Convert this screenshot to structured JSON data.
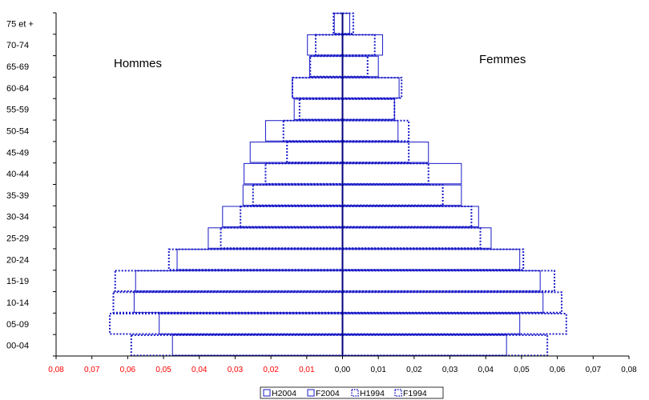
{
  "chart_data": {
    "type": "bar",
    "orientation": "horizontal-pyramid",
    "categories": [
      "00-04",
      "05-09",
      "10-14",
      "15-19",
      "20-24",
      "25-29",
      "30-34",
      "35-39",
      "40-44",
      "45-49",
      "50-54",
      "55-59",
      "60-64",
      "65-69",
      "70-74",
      "75 et +"
    ],
    "x_ticks": [
      "0,08",
      "0,07",
      "0,06",
      "0,05",
      "0,04",
      "0,03",
      "0,02",
      "0,01",
      "0,00",
      "0,01",
      "0,02",
      "0,03",
      "0,04",
      "0,05",
      "0,06",
      "0,07",
      "0,08"
    ],
    "xlim": [
      -0.08,
      0.08
    ],
    "grid": false,
    "legend_position": "bottom",
    "side_labels": {
      "left": "Hommes",
      "right": "Femmes"
    },
    "series": [
      {
        "name": "H2004",
        "side": "left",
        "style": "solid",
        "values": [
          0.0475,
          0.0512,
          0.0582,
          0.0578,
          0.0462,
          0.0375,
          0.0335,
          0.0278,
          0.0275,
          0.0258,
          0.0215,
          0.0135,
          0.014,
          0.0092,
          0.0098,
          0.0023
        ]
      },
      {
        "name": "F2004",
        "side": "right",
        "style": "solid",
        "values": [
          0.0458,
          0.0495,
          0.056,
          0.0552,
          0.0495,
          0.0415,
          0.038,
          0.0332,
          0.0332,
          0.024,
          0.0155,
          0.0145,
          0.0158,
          0.01,
          0.0112,
          0.002
        ]
      },
      {
        "name": "H1994",
        "side": "left",
        "style": "dotted",
        "values": [
          0.059,
          0.065,
          0.064,
          0.0635,
          0.0485,
          0.034,
          0.0285,
          0.025,
          0.0215,
          0.0155,
          0.0165,
          0.012,
          0.014,
          0.009,
          0.0075,
          0.0025
        ]
      },
      {
        "name": "F1994",
        "side": "right",
        "style": "dotted",
        "values": [
          0.0572,
          0.0625,
          0.0612,
          0.0592,
          0.0505,
          0.0385,
          0.036,
          0.028,
          0.024,
          0.0185,
          0.0185,
          0.0145,
          0.0165,
          0.007,
          0.009,
          0.003
        ]
      }
    ]
  },
  "style": {
    "bar_color": "#1a1ac8",
    "axis_color": "#000000",
    "left_tick_color": "#ff0000",
    "right_tick_color": "#000000",
    "center_line_color": "#000080"
  }
}
